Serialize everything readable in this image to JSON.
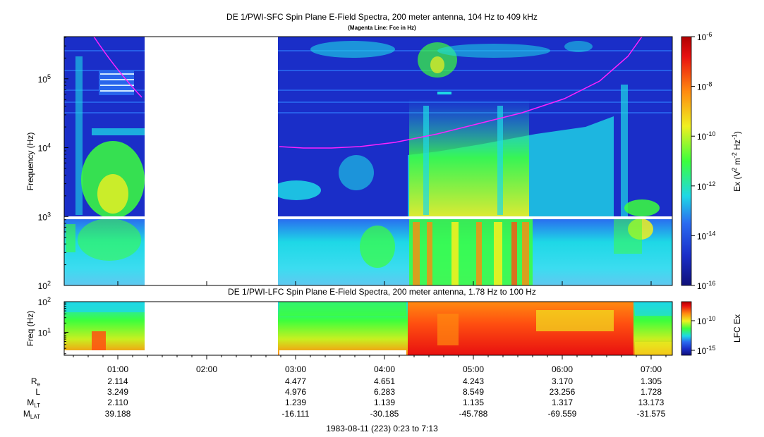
{
  "titles": {
    "main": "DE 1/PWI-SFC  Spin Plane E-Field Spectra, 200 meter antenna, 104 Hz to 409 kHz",
    "subtitle": "(Magenta Line: Fce in Hz)",
    "lfc": "DE 1/PWI-LFC  Spin Plane E-Field Spectra, 200 meter antenna, 1.78 Hz to 100 Hz",
    "footer": "1983-08-11 (223) 0:23 to 7:13"
  },
  "colors": {
    "gap": "#ffffff",
    "magenta_line": "#ff22ff",
    "background_low": "#1a2ec8",
    "background_mid": "#2a6bf0",
    "cyan": "#1ed8e6",
    "green": "#3cff3c",
    "yellow": "#f0f020",
    "orange": "#ff8a10",
    "red": "#e81010"
  },
  "chart_data": [
    {
      "type": "heatmap",
      "title": "DE 1/PWI-SFC  Spin Plane E-Field Spectra, 200 meter antenna, 104 Hz to 409 kHz",
      "ylabel": "Frequency (Hz)",
      "yscale": "log",
      "ylim": [
        100,
        409000
      ],
      "y_ticks": [
        {
          "label": "10",
          "sup": "2",
          "value": 100
        },
        {
          "label": "10",
          "sup": "3",
          "value": 1000
        },
        {
          "label": "10",
          "sup": "4",
          "value": 10000
        },
        {
          "label": "10",
          "sup": "5",
          "value": 100000
        }
      ],
      "colorbar": {
        "label_parts": [
          "Ex (V",
          "2",
          " m",
          "-2",
          " Hz",
          "-1",
          ")"
        ],
        "ticks": [
          {
            "label": "10",
            "sup": "-6"
          },
          {
            "label": "10",
            "sup": "-8"
          },
          {
            "label": "10",
            "sup": "-10"
          },
          {
            "label": "10",
            "sup": "-12"
          },
          {
            "label": "10",
            "sup": "-14"
          },
          {
            "label": "10",
            "sup": "-16"
          }
        ],
        "range_log": [
          -16,
          -6
        ]
      },
      "data_gaps_ut": [
        [
          "01:18",
          "02:50"
        ]
      ],
      "magenta_line_fce": "Fce in Hz"
    },
    {
      "type": "heatmap",
      "title": "DE 1/PWI-LFC  Spin Plane E-Field Spectra, 200 meter antenna, 1.78 Hz to 100 Hz",
      "ylabel": "Freq (Hz)",
      "yscale": "log",
      "ylim": [
        1.78,
        100
      ],
      "y_ticks": [
        {
          "label": "10",
          "sup": "1",
          "value": 10
        },
        {
          "label": "10",
          "sup": "2",
          "value": 100
        }
      ],
      "colorbar": {
        "label": "LFC Ex",
        "ticks": [
          {
            "label": "10",
            "sup": "-10"
          },
          {
            "label": "10",
            "sup": "-15"
          }
        ]
      },
      "data_gaps_ut": [
        [
          "01:18",
          "02:50"
        ]
      ]
    }
  ],
  "x_axis": {
    "ticks": [
      "01:00",
      "02:00",
      "03:00",
      "04:00",
      "05:00",
      "06:00",
      "07:00"
    ],
    "ephemeris_labels": [
      {
        "main": "R",
        "sub": "e"
      },
      {
        "main": "L",
        "sub": ""
      },
      {
        "main": "M",
        "sub": "LT"
      },
      {
        "main": "M",
        "sub": "LAT"
      }
    ],
    "ephemeris_values": {
      "re": [
        "2.114",
        "",
        "4.477",
        "4.651",
        "4.243",
        "3.170",
        "1.305"
      ],
      "l": [
        "3.249",
        "",
        "4.976",
        "6.283",
        "8.549",
        "23.256",
        "1.728"
      ],
      "mlt": [
        "2.110",
        "",
        "1.239",
        "1.139",
        "1.135",
        "1.317",
        "13.173"
      ],
      "mlat": [
        "39.188",
        "",
        "-16.111",
        "-30.185",
        "-45.788",
        "-69.559",
        "-31.575"
      ]
    }
  }
}
